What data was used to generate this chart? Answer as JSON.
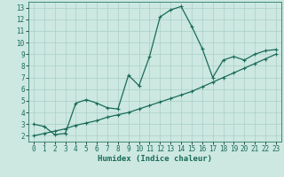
{
  "xlabel": "Humidex (Indice chaleur)",
  "background_color": "#cce8e0",
  "grid_color": "#aacfc8",
  "line_color": "#1a6b5a",
  "spine_color": "#2a7a6a",
  "xlim": [
    -0.5,
    23.5
  ],
  "ylim": [
    1.5,
    13.5
  ],
  "xticks": [
    0,
    1,
    2,
    3,
    4,
    5,
    6,
    7,
    8,
    9,
    10,
    11,
    12,
    13,
    14,
    15,
    16,
    17,
    18,
    19,
    20,
    21,
    22,
    23
  ],
  "yticks": [
    2,
    3,
    4,
    5,
    6,
    7,
    8,
    9,
    10,
    11,
    12,
    13
  ],
  "curve1_x": [
    0,
    1,
    2,
    3,
    4,
    5,
    6,
    7,
    8,
    9,
    10,
    11,
    12,
    13,
    14,
    15,
    16,
    17,
    18,
    19,
    20,
    21,
    22,
    23
  ],
  "curve1_y": [
    3.0,
    2.8,
    2.1,
    2.2,
    4.8,
    5.1,
    4.8,
    4.4,
    4.3,
    7.2,
    6.3,
    8.8,
    12.2,
    12.8,
    13.1,
    11.4,
    9.5,
    7.0,
    8.5,
    8.8,
    8.5,
    9.0,
    9.3,
    9.4
  ],
  "curve2_x": [
    0,
    1,
    2,
    3,
    4,
    5,
    6,
    7,
    8,
    9,
    10,
    11,
    12,
    13,
    14,
    15,
    16,
    17,
    18,
    19,
    20,
    21,
    22,
    23
  ],
  "curve2_y": [
    2.0,
    2.2,
    2.4,
    2.6,
    2.9,
    3.1,
    3.3,
    3.6,
    3.8,
    4.0,
    4.3,
    4.6,
    4.9,
    5.2,
    5.5,
    5.8,
    6.2,
    6.6,
    7.0,
    7.4,
    7.8,
    8.2,
    8.6,
    9.0
  ],
  "marker": "+",
  "markersize": 3,
  "linewidth": 0.9,
  "tick_fontsize": 5.5,
  "xlabel_fontsize": 6.5
}
